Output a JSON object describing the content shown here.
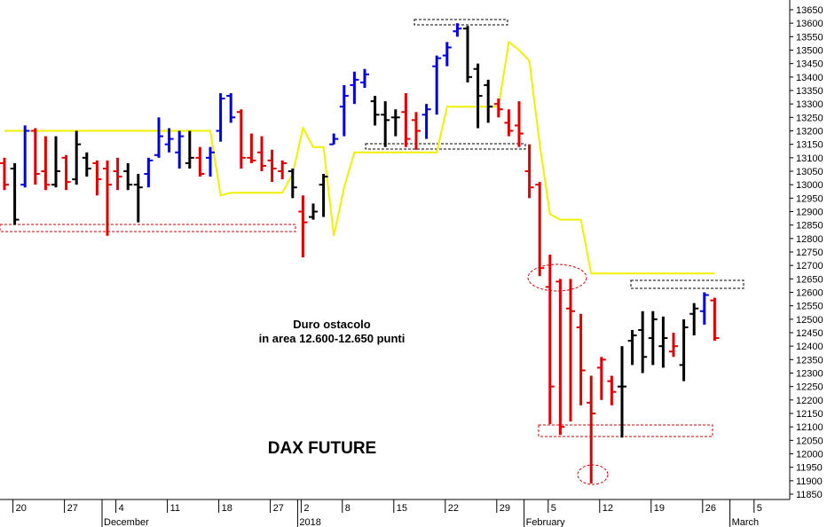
{
  "chart_data": {
    "type": "ohlc",
    "categories": [
      null,
      "20",
      null,
      null,
      null,
      null,
      "27",
      null,
      null,
      null,
      null,
      "4",
      null,
      null,
      null,
      null,
      "11",
      null,
      null,
      null,
      null,
      "18",
      null,
      null,
      null,
      null,
      "27",
      null,
      null,
      "2",
      null,
      null,
      null,
      "8",
      null,
      null,
      null,
      null,
      "15",
      null,
      null,
      null,
      null,
      "22",
      null,
      null,
      null,
      null,
      "29",
      null,
      null,
      null,
      null,
      "5",
      null,
      null,
      null,
      null,
      "12",
      null,
      null,
      null,
      null,
      "19",
      null,
      null,
      null,
      null,
      "26",
      null,
      null,
      null,
      null,
      "5"
    ],
    "months": [
      null,
      null,
      null,
      null,
      null,
      null,
      null,
      null,
      null,
      null,
      "December",
      null,
      null,
      null,
      null,
      null,
      null,
      null,
      null,
      null,
      null,
      null,
      null,
      null,
      null,
      null,
      null,
      null,
      null,
      "2018",
      null,
      null,
      null,
      null,
      null,
      null,
      null,
      null,
      null,
      null,
      null,
      null,
      null,
      null,
      null,
      null,
      null,
      null,
      null,
      null,
      null,
      "February",
      null,
      null,
      null,
      null,
      null,
      null,
      null,
      null,
      null,
      null,
      null,
      null,
      null,
      null,
      null,
      null,
      null,
      null,
      null,
      "March",
      null,
      null
    ],
    "open": [
      13080,
      13060,
      13000,
      13200,
      13050,
      13000,
      13100,
      13020,
      13100,
      13080,
      13060,
      13050,
      13050,
      13000,
      13040,
      13110,
      13150,
      13120,
      13080,
      13100,
      13100,
      13200,
      13330,
      13270,
      13100,
      13120,
      13090,
      13050,
      13050,
      12900,
      12880,
      13000,
      13150,
      13290,
      13370,
      13380,
      13310,
      13260,
      13250,
      13270,
      13240,
      13260,
      13440,
      13480,
      13570,
      13580,
      13430,
      13370,
      13300,
      13230,
      13220,
      13050,
      13000,
      12620,
      12640,
      12540,
      12470,
      12190,
      12320,
      12270,
      12250,
      12420,
      12460,
      12430,
      12400,
      12380,
      12330,
      12520,
      12530,
      12570,
      null,
      null,
      null,
      null
    ],
    "high": [
      13100,
      13080,
      13220,
      13210,
      13180,
      13180,
      13110,
      13200,
      13120,
      13090,
      13090,
      13100,
      13080,
      13040,
      13100,
      13250,
      13210,
      13200,
      13200,
      13140,
      13140,
      13340,
      13340,
      13280,
      13190,
      13180,
      13130,
      13090,
      13060,
      12960,
      12930,
      13040,
      13190,
      13370,
      13420,
      13430,
      13330,
      13310,
      13280,
      13340,
      13270,
      13300,
      13480,
      13530,
      13600,
      13590,
      13450,
      13390,
      13320,
      13280,
      13310,
      13150,
      13010,
      12740,
      12650,
      12650,
      12520,
      12290,
      12360,
      12290,
      12400,
      12460,
      12530,
      12530,
      12510,
      12450,
      12500,
      12560,
      12600,
      12580,
      null,
      null,
      null,
      null
    ],
    "low": [
      12980,
      12850,
      12990,
      13000,
      12980,
      12990,
      12980,
      13000,
      13030,
      12960,
      12810,
      12980,
      12980,
      12860,
      12990,
      13100,
      13120,
      13060,
      13060,
      13030,
      13030,
      13160,
      13230,
      13060,
      13080,
      13050,
      13010,
      13020,
      12950,
      12730,
      12870,
      12880,
      13150,
      13180,
      13300,
      13360,
      13220,
      13140,
      13180,
      13140,
      13130,
      13170,
      13260,
      13440,
      13550,
      13380,
      13210,
      13230,
      13250,
      13180,
      13140,
      12950,
      12660,
      12110,
      12070,
      12120,
      12180,
      11890,
      12200,
      12180,
      12060,
      12330,
      12300,
      12330,
      12320,
      12360,
      12270,
      12440,
      12480,
      12420,
      null,
      null,
      null,
      null
    ],
    "close": [
      13000,
      12870,
      13200,
      13040,
      13000,
      13050,
      13010,
      13150,
      13060,
      13020,
      13000,
      13030,
      13000,
      12990,
      13090,
      13180,
      13170,
      13180,
      13100,
      13040,
      13120,
      13320,
      13250,
      13100,
      13090,
      13070,
      13060,
      13080,
      12990,
      12860,
      12900,
      13030,
      13170,
      13330,
      13390,
      13410,
      13260,
      13240,
      13250,
      13170,
      13200,
      13280,
      13470,
      13510,
      13580,
      13400,
      13330,
      13290,
      13280,
      13200,
      13190,
      12990,
      12690,
      12250,
      12100,
      12530,
      12310,
      12150,
      12350,
      12230,
      12250,
      12440,
      12360,
      12500,
      12430,
      12400,
      12470,
      12540,
      12590,
      12430,
      null,
      null,
      null,
      null
    ],
    "colors": [
      "#e00000",
      "#000000",
      "#0000e6",
      "#e00000",
      "#e00000",
      "#000000",
      "#e00000",
      "#000000",
      "#000000",
      "#e00000",
      "#e00000",
      "#e00000",
      "#000000",
      "#000000",
      "#0000e6",
      "#0000e6",
      "#0000e6",
      "#0000e6",
      "#000000",
      "#e00000",
      "#0000e6",
      "#0000e6",
      "#0000e6",
      "#e00000",
      "#e00000",
      "#e00000",
      "#e00000",
      "#e00000",
      "#000000",
      "#e00000",
      "#000000",
      "#000000",
      "#0000e6",
      "#0000e6",
      "#0000e6",
      "#0000e6",
      "#000000",
      "#000000",
      "#000000",
      "#e00000",
      "#e00000",
      "#0000e6",
      "#0000e6",
      "#0000e6",
      "#0000e6",
      "#000000",
      "#000000",
      "#000000",
      "#e00000",
      "#e00000",
      "#e00000",
      "#e00000",
      "#e00000",
      "#e00000",
      "#e00000",
      "#e00000",
      "#e00000",
      "#e00000",
      "#e00000",
      "#e00000",
      "#000000",
      "#000000",
      "#000000",
      "#000000",
      "#000000",
      "#e00000",
      "#000000",
      "#000000",
      "#0000e6",
      "#e00000",
      null,
      null,
      null,
      null
    ],
    "line": {
      "color": "#f0f000",
      "values": [
        13200,
        13200,
        13200,
        13200,
        13200,
        13200,
        13200,
        13200,
        13200,
        13200,
        13200,
        13200,
        13200,
        13200,
        13200,
        13200,
        13200,
        13200,
        13200,
        13200,
        13200,
        12960,
        12970,
        12970,
        12970,
        12970,
        12970,
        12970,
        13040,
        13210,
        13140,
        13140,
        12810,
        12990,
        13120,
        13120,
        13120,
        13120,
        13120,
        13120,
        13120,
        13120,
        13120,
        13290,
        13290,
        13290,
        13290,
        13290,
        13290,
        13530,
        13500,
        13460,
        13150,
        12890,
        12870,
        12870,
        12870,
        12670,
        12670,
        12670,
        12670,
        12670,
        12670,
        12670,
        12670,
        12670,
        12670,
        12670,
        12670,
        12670,
        null,
        null,
        null,
        null
      ]
    },
    "ylim": [
      11850,
      13650
    ],
    "yticks": [
      11850,
      11900,
      11950,
      12000,
      12050,
      12100,
      12150,
      12200,
      12250,
      12300,
      12350,
      12400,
      12450,
      12500,
      12550,
      12600,
      12650,
      12700,
      12750,
      12800,
      12850,
      12900,
      12950,
      13000,
      13050,
      13100,
      13150,
      13200,
      13250,
      13300,
      13350,
      13400,
      13450,
      13500,
      13550,
      13600,
      13650
    ],
    "annotations": [
      "Duro ostacolo",
      "in area 12.600-12.650 punti"
    ],
    "label": "DAX FUTURE"
  }
}
